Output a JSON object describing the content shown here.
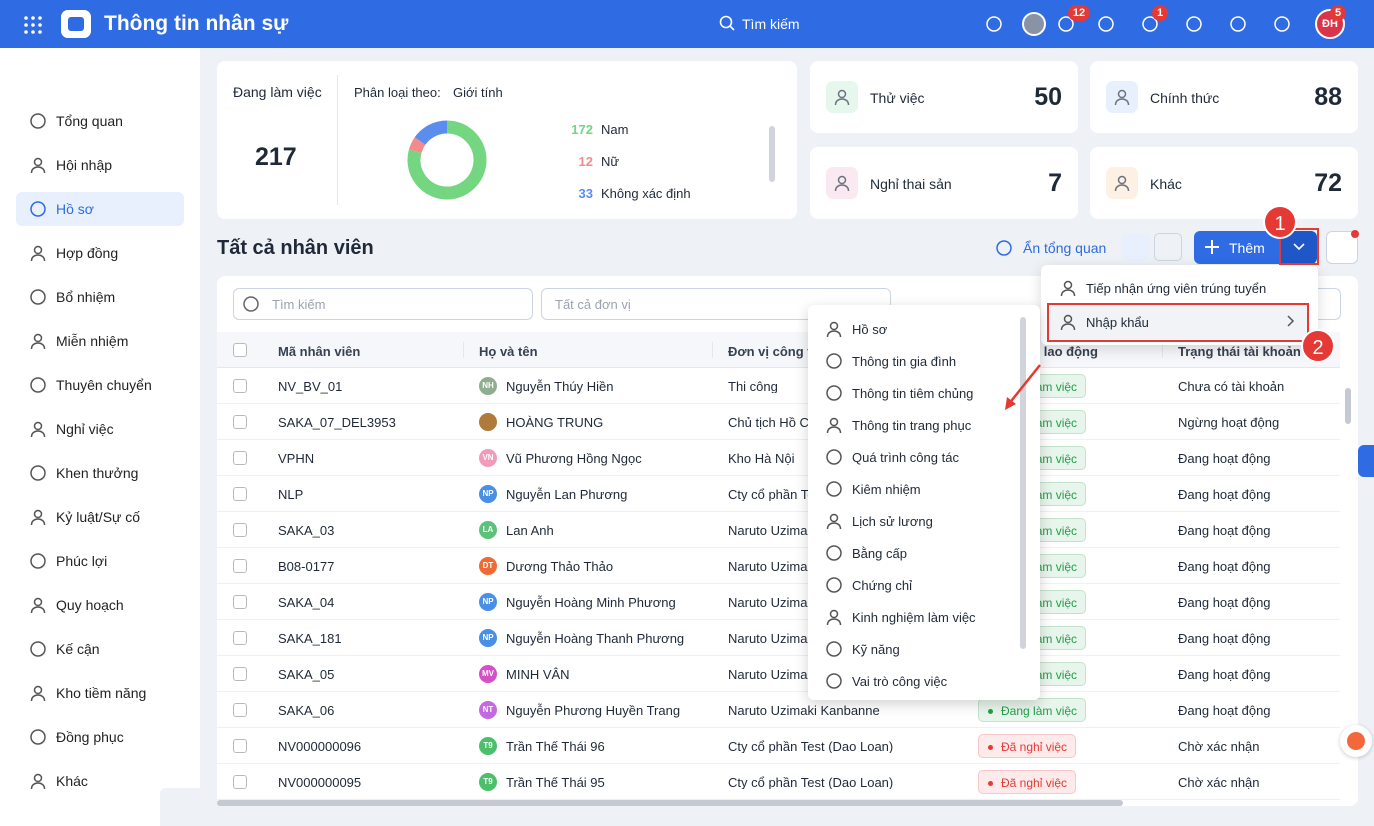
{
  "header": {
    "title": "Thông tin nhân sự",
    "search": "Tìm kiếm",
    "badge_announce": "12",
    "badge_notify": "1",
    "badge_avatar": "5",
    "avatar": "ĐH"
  },
  "sidebar": {
    "items": [
      "Tổng quan",
      "Hội nhập",
      "Hồ sơ",
      "Hợp đồng",
      "Bổ nhiệm",
      "Miễn nhiệm",
      "Thuyên chuyển",
      "Nghỉ việc",
      "Khen thưởng",
      "Kỷ luật/Sự cố",
      "Phúc lợi",
      "Quy hoạch",
      "Kế cận",
      "Kho tiềm năng",
      "Đồng phục",
      "Khác"
    ],
    "active": 2
  },
  "summary": {
    "working_label": "Đang làm việc",
    "working_total": "217",
    "classify_label": "Phân loại theo:",
    "classify_value": "Giới tính",
    "gender": [
      {
        "count": 172,
        "label": "Nam",
        "color": "#74d680"
      },
      {
        "count": 12,
        "label": "Nữ",
        "color": "#f28b8b"
      },
      {
        "count": 33,
        "label": "Không xác định",
        "color": "#5b8def"
      }
    ]
  },
  "stats": [
    {
      "label": "Thử việc",
      "value": "50",
      "color": "#e6f7ee"
    },
    {
      "label": "Chính thức",
      "value": "88",
      "color": "#e8f0fd"
    },
    {
      "label": "Nghỉ thai sản",
      "value": "7",
      "color": "#fbe9f1"
    },
    {
      "label": "Khác",
      "value": "72",
      "color": "#fdf1e4"
    }
  ],
  "list": {
    "title": "Tất cả nhân viên",
    "hide_overview": "Ẩn tổng quan",
    "add": "Thêm",
    "search": "Tìm kiếm",
    "unit_filter": "Tất cả đơn vị"
  },
  "table": {
    "columns": [
      "Mã nhân viên",
      "Họ và tên",
      "Đơn vị công tác",
      "Trạng thái lao động",
      "Trạng thái tài khoản"
    ],
    "rows": [
      {
        "code": "NV_BV_01",
        "initials": "NH",
        "avatar_color": "#8fae8f",
        "name": "Nguyễn Thúy Hiền",
        "unit": "Thi công",
        "status": "Đang làm việc",
        "status_color": "#21a047",
        "account": "Chưa có tài khoản"
      },
      {
        "code": "SAKA_07_DEL3953",
        "avatar_color": "#b07a3c",
        "name": "HOÀNG TRUNG",
        "unit": "Chủ tịch Hồ C",
        "status": "Đang làm việc",
        "status_color": "#21a047",
        "account": "Ngừng hoạt động"
      },
      {
        "code": "VPHN",
        "initials": "VN",
        "avatar_color": "#f39ab8",
        "name": "Vũ Phương Hồng Ngọc",
        "unit": "Kho Hà Nội",
        "status": "Đang làm việc",
        "status_color": "#21a047",
        "account": "Đang hoạt động"
      },
      {
        "code": "NLP",
        "initials": "NP",
        "avatar_color": "#4a8fe6",
        "name": "Nguyễn Lan Phương",
        "unit": "Cty cổ phần Test (Dao Loan)",
        "status": "Đang làm việc",
        "status_color": "#21a047",
        "account": "Đang hoạt động"
      },
      {
        "code": "SAKA_03",
        "initials": "LA",
        "avatar_color": "#5cc27a",
        "name": "Lan Anh",
        "unit": "Naruto Uzimaki Kanbanne",
        "status": "Đang làm việc",
        "status_color": "#21a047",
        "account": "Đang hoạt động"
      },
      {
        "code": "B08-0177",
        "initials": "DT",
        "avatar_color": "#f06a35",
        "name": "Dương Thảo Thảo",
        "unit": "Naruto Uzimaki Kanbanne",
        "status": "Đang làm việc",
        "status_color": "#21a047",
        "account": "Đang hoạt động"
      },
      {
        "code": "SAKA_04",
        "initials": "NP",
        "avatar_color": "#4a8fe6",
        "name": "Nguyễn Hoàng Minh Phương",
        "unit": "Naruto Uzimaki Kanbanne",
        "status": "Đang làm việc",
        "status_color": "#21a047",
        "account": "Đang hoạt động"
      },
      {
        "code": "SAKA_181",
        "initials": "NP",
        "avatar_color": "#4a8fe6",
        "name": "Nguyễn Hoàng Thanh Phương",
        "unit": "Naruto Uzimaki Kanbanne",
        "status": "Đang làm việc",
        "status_color": "#21a047",
        "account": "Đang hoạt động"
      },
      {
        "code": "SAKA_05",
        "initials": "MV",
        "avatar_color": "#d64fc6",
        "name": "MINH VÂN",
        "unit": "Naruto Uzimaki Kanbanne",
        "status": "Đang làm việc",
        "status_color": "#21a047",
        "account": "Đang hoạt động"
      },
      {
        "code": "SAKA_06",
        "initials": "NT",
        "avatar_color": "#c46ae0",
        "name": "Nguyễn Phương Huyền Trang",
        "unit": "Naruto Uzimaki Kanbanne",
        "status": "Đang làm việc",
        "status_color": "#21a047",
        "account": "Đang hoạt động"
      },
      {
        "code": "NV000000096",
        "initials": "T9",
        "avatar_color": "#4cbf6a",
        "name": "Trần Thế Thái 96",
        "unit": "Cty cổ phần Test (Dao Loan)",
        "status": "Đã nghỉ việc",
        "status_color": "#e53935",
        "account": "Chờ xác nhận"
      },
      {
        "code": "NV000000095",
        "initials": "T9",
        "avatar_color": "#4cbf6a",
        "name": "Trần Thế Thái 95",
        "unit": "Cty cổ phần Test (Dao Loan)",
        "status": "Đã nghỉ việc",
        "status_color": "#e53935",
        "account": "Chờ xác nhận"
      }
    ]
  },
  "add_menu": [
    "Tiếp nhận ứng viên trúng tuyển",
    "Nhập khẩu"
  ],
  "import_menu": [
    "Hồ sơ",
    "Thông tin gia đình",
    "Thông tin tiêm chủng",
    "Thông tin trang phục",
    "Quá trình công tác",
    "Kiêm nhiệm",
    "Lịch sử lương",
    "Bằng cấp",
    "Chứng chỉ",
    "Kinh nghiệm làm việc",
    "Kỹ năng",
    "Vai trò công việc"
  ],
  "callouts": [
    "1",
    "2"
  ]
}
